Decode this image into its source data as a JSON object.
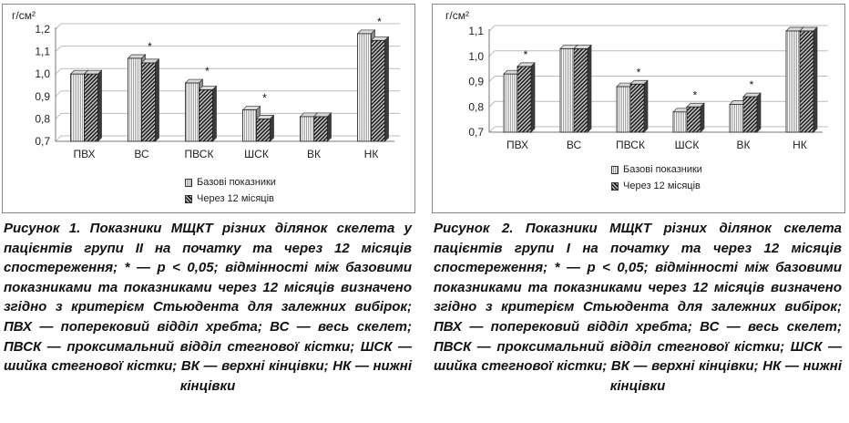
{
  "figures": [
    {
      "caption": "Рисунок 1. Показники МЩКТ різних ділянок скелета у пацієнтів групи II на початку та через 12 місяців спостереження; * — p < 0,05; відмінності між базовими показниками та показниками через 12 місяців визначено згідно з критерієм Стьюдента для залежних вибірок; ПВХ — поперековий відділ хребта; ВС — весь скелет; ПВСК — проксимальний відділ стегнової кістки; ШСК — шийка стегнової кістки; ВК — верхні кінцівки; НК — нижні кінцівки",
      "chart_data": {
        "type": "bar",
        "unit_label": "г/см²",
        "ylim": [
          0.7,
          1.2
        ],
        "yticks": [
          "0,7",
          "0,8",
          "0,9",
          "1,0",
          "1,1",
          "1,2"
        ],
        "categories": [
          "ПВХ",
          "ВС",
          "ПВСК",
          "ШСК",
          "ВК",
          "НК"
        ],
        "series": [
          {
            "name": "Базові показники",
            "values": [
              1.0,
              1.07,
              0.96,
              0.84,
              0.81,
              1.18
            ]
          },
          {
            "name": "Через 12 місяців",
            "values": [
              1.0,
              1.05,
              0.93,
              0.8,
              0.81,
              1.15
            ]
          }
        ],
        "significant": [
          false,
          true,
          true,
          true,
          false,
          true
        ],
        "marker": "*",
        "grid": true,
        "legend": "bottom-center"
      }
    },
    {
      "caption": "Рисунок 2. Показники МЩКТ різних ділянок скелета пацієнтів групи I на початку та через 12 місяців спостереження; * — p < 0,05; відмінності між базовими показниками та показниками через 12 місяців визначено згідно з критерієм Стьюдента для залежних вибірок; ПВХ — поперековий відділ хребта; ВС — весь скелет; ПВСК — проксимальний відділ стегнової кістки; ШСК — шийка стегнової кістки; ВК — верхні кінцівки; НК — нижні кінцівки",
      "chart_data": {
        "type": "bar",
        "unit_label": "г/см²",
        "ylim": [
          0.7,
          1.1
        ],
        "yticks": [
          "0,7",
          "0,8",
          "0,9",
          "1,0",
          "1,1"
        ],
        "categories": [
          "ПВХ",
          "ВС",
          "ПВСК",
          "ШСК",
          "ВК",
          "НК"
        ],
        "series": [
          {
            "name": "Базові показники",
            "values": [
              0.93,
              1.03,
              0.88,
              0.78,
              0.81,
              1.1
            ]
          },
          {
            "name": "Через 12 місяців",
            "values": [
              0.96,
              1.03,
              0.89,
              0.8,
              0.84,
              1.1
            ]
          }
        ],
        "significant": [
          true,
          false,
          true,
          true,
          true,
          false
        ],
        "marker": "*",
        "grid": true,
        "legend": "bottom-center"
      }
    }
  ]
}
